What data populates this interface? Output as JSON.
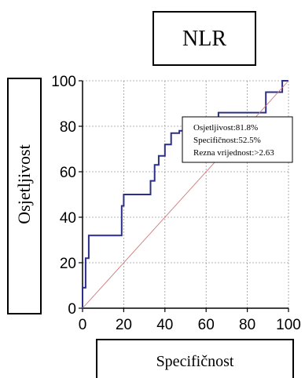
{
  "chart_data": {
    "type": "line",
    "title": "NLR",
    "xlabel": "Specifičnost",
    "ylabel": "Osjetljivost",
    "xlim": [
      0,
      100
    ],
    "ylim": [
      0,
      100
    ],
    "x_ticks": [
      "0",
      "20",
      "40",
      "60",
      "80",
      "100"
    ],
    "y_ticks": [
      "0",
      "20",
      "40",
      "60",
      "80",
      "100"
    ],
    "grid": true,
    "series": [
      {
        "name": "",
        "color": "#2b2f8a",
        "style": "step",
        "x": [
          0,
          0,
          1.5,
          1.5,
          3,
          3,
          19,
          19,
          20,
          20,
          33,
          33,
          35,
          35,
          37,
          37,
          40,
          40,
          43,
          43,
          47,
          47,
          54,
          54,
          66,
          66,
          89,
          89,
          97,
          97,
          100
        ],
        "y": [
          0,
          9,
          9,
          22,
          22,
          32,
          32,
          45,
          45,
          50,
          50,
          56,
          56,
          63,
          63,
          67,
          67,
          72,
          72,
          77,
          77,
          78,
          78,
          82,
          82,
          86,
          86,
          95,
          95,
          100,
          100
        ]
      },
      {
        "name": "",
        "color": "#d07a7a",
        "style": "diagonal",
        "x": [
          0,
          100
        ],
        "y": [
          0,
          100
        ]
      }
    ],
    "annotation": {
      "lines": [
        "Osjetljivost:81.8%",
        "Specifičnost:52.5%",
        "Rezna vrijednost:>2.63"
      ]
    }
  }
}
